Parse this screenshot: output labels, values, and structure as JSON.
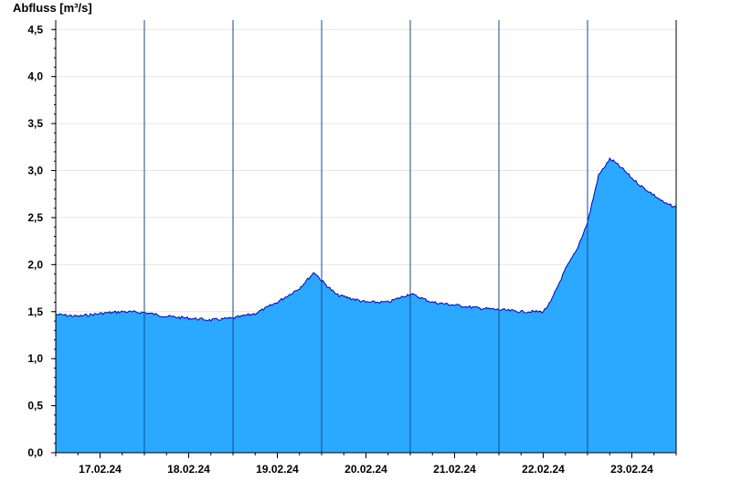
{
  "chart_data": {
    "type": "area",
    "ylabel": "Abfluss [m³/s]",
    "ylim": [
      0,
      4.6
    ],
    "yticks": [
      {
        "value": 0.0,
        "label": "0,0"
      },
      {
        "value": 0.5,
        "label": "0,5"
      },
      {
        "value": 1.0,
        "label": "1,0"
      },
      {
        "value": 1.5,
        "label": "1,5"
      },
      {
        "value": 2.0,
        "label": "2,0"
      },
      {
        "value": 2.5,
        "label": "2,5"
      },
      {
        "value": 3.0,
        "label": "3,0"
      },
      {
        "value": 3.5,
        "label": "3,5"
      },
      {
        "value": 4.0,
        "label": "4,0"
      },
      {
        "value": 4.5,
        "label": "4,5"
      }
    ],
    "xlim": [
      "2024-02-16T12:00",
      "2024-02-23T12:00"
    ],
    "day_boundaries": [
      "2024-02-17T12:00",
      "2024-02-18T12:00",
      "2024-02-19T12:00",
      "2024-02-20T12:00",
      "2024-02-21T12:00",
      "2024-02-22T12:00",
      "2024-02-23T12:00"
    ],
    "xticks": [
      {
        "x": "2024-02-17T00:00",
        "label": "17.02.24"
      },
      {
        "x": "2024-02-18T00:00",
        "label": "18.02.24"
      },
      {
        "x": "2024-02-19T00:00",
        "label": "19.02.24"
      },
      {
        "x": "2024-02-20T00:00",
        "label": "20.02.24"
      },
      {
        "x": "2024-02-21T00:00",
        "label": "21.02.24"
      },
      {
        "x": "2024-02-22T00:00",
        "label": "22.02.24"
      },
      {
        "x": "2024-02-23T00:00",
        "label": "23.02.24"
      }
    ],
    "grid": true,
    "fill_color": "#2ba8ff",
    "line_color": "#0000cc",
    "series": [
      {
        "x": [
          "2024-02-16T12:00",
          "2024-02-16T18:00",
          "2024-02-17T00:00",
          "2024-02-17T06:00",
          "2024-02-17T12:00",
          "2024-02-17T18:00",
          "2024-02-18T00:00",
          "2024-02-18T06:00",
          "2024-02-18T12:00",
          "2024-02-18T18:00",
          "2024-02-19T00:00",
          "2024-02-19T06:00",
          "2024-02-19T10:00",
          "2024-02-19T12:00",
          "2024-02-19T16:00",
          "2024-02-19T20:00",
          "2024-02-20T00:00",
          "2024-02-20T06:00",
          "2024-02-20T12:00",
          "2024-02-20T18:00",
          "2024-02-21T00:00",
          "2024-02-21T06:00",
          "2024-02-21T12:00",
          "2024-02-21T18:00",
          "2024-02-22T00:00",
          "2024-02-22T02:00",
          "2024-02-22T06:00",
          "2024-02-22T09:00",
          "2024-02-22T12:00",
          "2024-02-22T15:00",
          "2024-02-22T18:00",
          "2024-02-22T19:00",
          "2024-02-22T22:00",
          "2024-02-23T00:00",
          "2024-02-23T03:00",
          "2024-02-23T06:00",
          "2024-02-23T09:00",
          "2024-02-23T12:00"
        ],
        "values": [
          1.47,
          1.45,
          1.48,
          1.5,
          1.49,
          1.45,
          1.43,
          1.41,
          1.43,
          1.48,
          1.6,
          1.75,
          1.92,
          1.83,
          1.68,
          1.64,
          1.6,
          1.6,
          1.69,
          1.6,
          1.57,
          1.54,
          1.52,
          1.5,
          1.5,
          1.6,
          1.95,
          2.15,
          2.45,
          2.95,
          3.12,
          3.1,
          3.0,
          2.92,
          2.82,
          2.74,
          2.65,
          2.61
        ]
      }
    ]
  }
}
